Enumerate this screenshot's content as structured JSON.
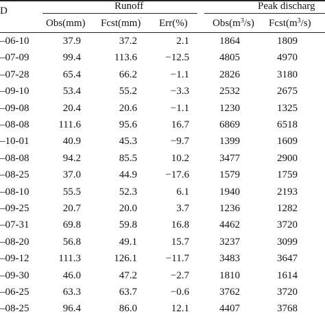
{
  "header": {
    "id_label": "D",
    "group_runoff": "Runoff",
    "group_peak": "Peak discharg",
    "columns": {
      "obs_mm": "Obs(mm)",
      "fcst_mm": "Fcst(mm)",
      "err_pct": "Err(%)",
      "obs_q_prefix": "Obs(m",
      "obs_q_sup": "3",
      "obs_q_suffix": "/s)",
      "fcst_q_prefix": "Fcst(m",
      "fcst_q_sup": "3",
      "fcst_q_suffix": "/s)"
    }
  },
  "rows": [
    {
      "date": "‒06-10",
      "obs": "37.9",
      "fcst": "37.2",
      "err": "2.1",
      "obs_q": "1864",
      "fcst_q": "1809"
    },
    {
      "date": "‒07-09",
      "obs": "99.4",
      "fcst": "113.6",
      "err": "−12.5",
      "obs_q": "4805",
      "fcst_q": "4970"
    },
    {
      "date": "‒07-28",
      "obs": "65.4",
      "fcst": "66.2",
      "err": "−1.1",
      "obs_q": "2826",
      "fcst_q": "3180"
    },
    {
      "date": "‒09-10",
      "obs": "53.4",
      "fcst": "55.2",
      "err": "−3.3",
      "obs_q": "2532",
      "fcst_q": "2675"
    },
    {
      "date": "‒09-08",
      "obs": "20.4",
      "fcst": "20.6",
      "err": "−1.1",
      "obs_q": "1230",
      "fcst_q": "1325"
    },
    {
      "date": "‒08-08",
      "obs": "111.6",
      "fcst": "95.6",
      "err": "16.7",
      "obs_q": "6869",
      "fcst_q": "6518"
    },
    {
      "date": "‒10-01",
      "obs": "40.9",
      "fcst": "45.3",
      "err": "−9.7",
      "obs_q": "1399",
      "fcst_q": "1609"
    },
    {
      "date": "‒08-08",
      "obs": "94.2",
      "fcst": "85.5",
      "err": "10.2",
      "obs_q": "3477",
      "fcst_q": "2900"
    },
    {
      "date": "‒08-25",
      "obs": "37.0",
      "fcst": "44.9",
      "err": "−17.6",
      "obs_q": "1579",
      "fcst_q": "1759"
    },
    {
      "date": "‒08-10",
      "obs": "55.5",
      "fcst": "52.3",
      "err": "6.1",
      "obs_q": "1940",
      "fcst_q": "2193"
    },
    {
      "date": "‒09-25",
      "obs": "20.7",
      "fcst": "20.0",
      "err": "3.7",
      "obs_q": "1236",
      "fcst_q": "1282"
    },
    {
      "date": "‒07-31",
      "obs": "69.8",
      "fcst": "59.8",
      "err": "16.8",
      "obs_q": "4462",
      "fcst_q": "3720"
    },
    {
      "date": "‒08-20",
      "obs": "56.8",
      "fcst": "49.1",
      "err": "15.7",
      "obs_q": "3237",
      "fcst_q": "3099"
    },
    {
      "date": "‒09-12",
      "obs": "111.3",
      "fcst": "126.1",
      "err": "−11.7",
      "obs_q": "3483",
      "fcst_q": "3647"
    },
    {
      "date": "‒09-30",
      "obs": "46.0",
      "fcst": "47.2",
      "err": "−2.7",
      "obs_q": "1810",
      "fcst_q": "1614"
    },
    {
      "date": "‒06-25",
      "obs": "63.3",
      "fcst": "63.7",
      "err": "−0.6",
      "obs_q": "3762",
      "fcst_q": "3720"
    },
    {
      "date": "‒08-25",
      "obs": "96.4",
      "fcst": "86.0",
      "err": "12.1",
      "obs_q": "4407",
      "fcst_q": "3768"
    }
  ]
}
